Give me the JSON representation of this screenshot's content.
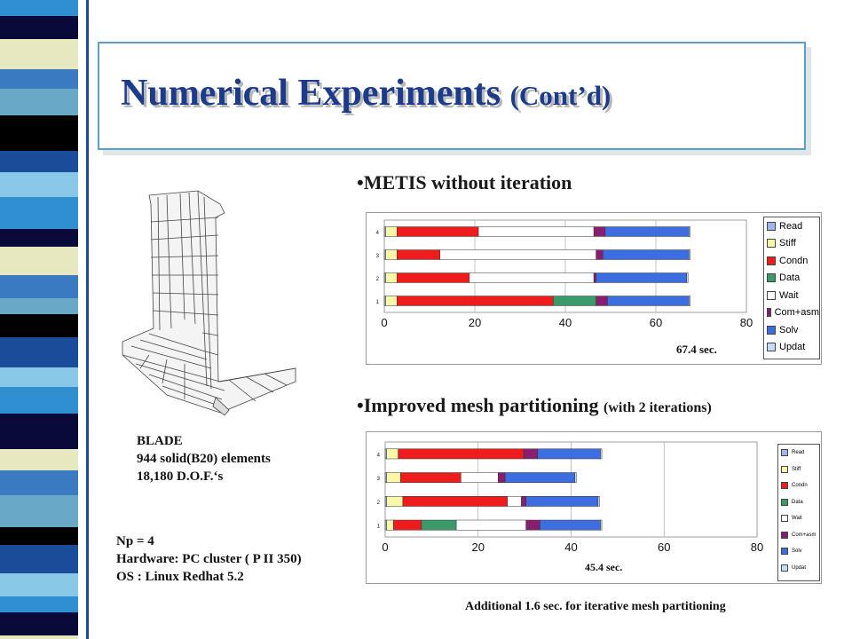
{
  "slide": {
    "title": "Numerical Experiments",
    "title_suffix": "(Cont’d)"
  },
  "model": {
    "name": "BLADE",
    "elements": "944  solid(B20) elements",
    "dof": "18,180 D.O.F.‘s"
  },
  "setup": {
    "np": "Np = 4",
    "hardware": "Hardware: PC cluster ( P II 350)",
    "os": "OS : Linux Redhat 5.2"
  },
  "section1": {
    "bullet": "•METIS without iteration",
    "time_label": "67.4 sec."
  },
  "section2": {
    "bullet": "•Improved mesh partitioning",
    "bullet_suffix": "(with 2 iterations)",
    "time_label": "45.4 sec.",
    "footnote": "Additional 1.6 sec. for iterative mesh partitioning"
  },
  "colors": {
    "Read": "#9fb4f0",
    "Stiff": "#f8f8a8",
    "Condn": "#ee1c1c",
    "Data": "#3a9a6a",
    "Wait": "#ffffff",
    "Com+asm": "#8a1e6e",
    "Solv": "#3d6ee0",
    "Updat": "#c8dcf8"
  },
  "chart_data": [
    {
      "type": "bar",
      "orientation": "horizontal",
      "stacked": true,
      "categories": [
        "1",
        "2",
        "3",
        "4"
      ],
      "xlim": [
        0,
        80
      ],
      "xticks": [
        "0",
        "20",
        "40",
        "60",
        "80"
      ],
      "legend": [
        "Read",
        "Stiff",
        "Condn",
        "Data",
        "Wait",
        "Com+asm",
        "Solv",
        "Updat"
      ],
      "legend_position": "right",
      "series": [
        {
          "name": "Read",
          "values": [
            0.3,
            0.3,
            0.3,
            0.3
          ]
        },
        {
          "name": "Stiff",
          "values": [
            2.5,
            2.5,
            2.5,
            2.5
          ]
        },
        {
          "name": "Condn",
          "values": [
            34.5,
            16,
            9.5,
            18
          ]
        },
        {
          "name": "Data",
          "values": [
            9.5,
            0,
            0,
            0
          ]
        },
        {
          "name": "Wait",
          "values": [
            0,
            27.5,
            34.5,
            25.5
          ]
        },
        {
          "name": "Com+asm",
          "values": [
            2.5,
            0.5,
            1.5,
            2.5
          ]
        },
        {
          "name": "Solv",
          "values": [
            18,
            20,
            19,
            18.5
          ]
        },
        {
          "name": "Updat",
          "values": [
            0.3,
            0.3,
            0.3,
            0.3
          ]
        }
      ]
    },
    {
      "type": "bar",
      "orientation": "horizontal",
      "stacked": true,
      "categories": [
        "1",
        "2",
        "3",
        "4"
      ],
      "xlim": [
        0,
        80
      ],
      "xticks": [
        "0",
        "20",
        "40",
        "60",
        "80"
      ],
      "legend": [
        "Read",
        "Stiff",
        "Condn",
        "Data",
        "Wait",
        "Com+asm",
        "Solv",
        "Updat"
      ],
      "legend_position": "right",
      "series": [
        {
          "name": "Read",
          "values": [
            0.3,
            0.3,
            0.3,
            0.3
          ]
        },
        {
          "name": "Stiff",
          "values": [
            1.5,
            3.5,
            3,
            2.5
          ]
        },
        {
          "name": "Condn",
          "values": [
            6,
            22.5,
            13,
            27
          ]
        },
        {
          "name": "Data",
          "values": [
            7.5,
            0,
            0,
            0
          ]
        },
        {
          "name": "Wait",
          "values": [
            15,
            3,
            8,
            0
          ]
        },
        {
          "name": "Com+asm",
          "values": [
            3,
            1,
            1.5,
            3
          ]
        },
        {
          "name": "Solv",
          "values": [
            13,
            15.5,
            15,
            13.5
          ]
        },
        {
          "name": "Updat",
          "values": [
            0.3,
            0.3,
            0.3,
            0.3
          ]
        }
      ]
    }
  ]
}
